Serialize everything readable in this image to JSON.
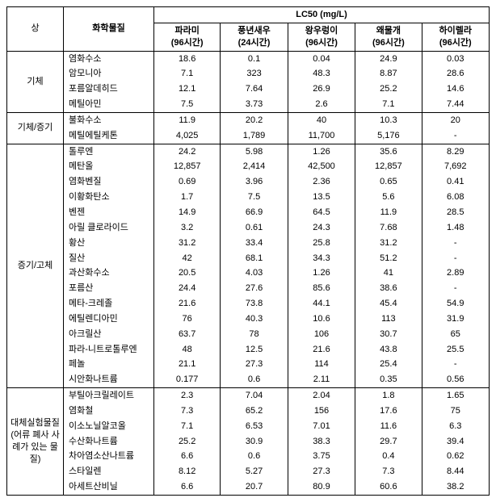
{
  "header": {
    "category_label": "상",
    "chemical_label": "화학물질",
    "lc50_label": "LC50  (mg/L)",
    "columns": [
      {
        "name": "파라미",
        "time": "(96시간)"
      },
      {
        "name": "풍년새우",
        "time": "(24시간)"
      },
      {
        "name": "왕우렁이",
        "time": "(96시간)"
      },
      {
        "name": "왜물개",
        "time": "(96시간)"
      },
      {
        "name": "하이렐라",
        "time": "(96시간)"
      }
    ]
  },
  "groups": [
    {
      "category": "기체",
      "rows": [
        {
          "chem": "염화수소",
          "v": [
            "18.6",
            "0.1",
            "0.04",
            "24.9",
            "0.03"
          ]
        },
        {
          "chem": "암모니아",
          "v": [
            "7.1",
            "323",
            "48.3",
            "8.87",
            "28.6"
          ]
        },
        {
          "chem": "포름알데히드",
          "v": [
            "12.1",
            "7.64",
            "26.9",
            "25.2",
            "14.6"
          ]
        },
        {
          "chem": "메틸아민",
          "v": [
            "7.5",
            "3.73",
            "2.6",
            "7.1",
            "7.44"
          ]
        }
      ]
    },
    {
      "category": "기체/증기",
      "rows": [
        {
          "chem": "불화수소",
          "v": [
            "11.9",
            "20.2",
            "40",
            "10.3",
            "20"
          ]
        },
        {
          "chem": "메틸에틸케톤",
          "v": [
            "4,025",
            "1,789",
            "11,700",
            "5,176",
            "-"
          ]
        }
      ]
    },
    {
      "category": "증기/고체",
      "rows": [
        {
          "chem": "톨루엔",
          "v": [
            "24.2",
            "5.98",
            "1.26",
            "35.6",
            "8.29"
          ]
        },
        {
          "chem": "메탄올",
          "v": [
            "12,857",
            "2,414",
            "42,500",
            "12,857",
            "7,692"
          ]
        },
        {
          "chem": "염화벤질",
          "v": [
            "0.69",
            "3.96",
            "2.36",
            "0.65",
            "0.41"
          ]
        },
        {
          "chem": "이황화탄소",
          "v": [
            "1.7",
            "7.5",
            "13.5",
            "5.6",
            "6.08"
          ]
        },
        {
          "chem": "벤젠",
          "v": [
            "14.9",
            "66.9",
            "64.5",
            "11.9",
            "28.5"
          ]
        },
        {
          "chem": "아릴 클로라이드",
          "v": [
            "3.2",
            "0.61",
            "24.3",
            "7.68",
            "1.48"
          ]
        },
        {
          "chem": "황산",
          "v": [
            "31.2",
            "33.4",
            "25.8",
            "31.2",
            "-"
          ]
        },
        {
          "chem": "질산",
          "v": [
            "42",
            "68.1",
            "34.3",
            "51.2",
            "-"
          ]
        },
        {
          "chem": "과산화수소",
          "v": [
            "20.5",
            "4.03",
            "1.26",
            "41",
            "2.89"
          ]
        },
        {
          "chem": "포름산",
          "v": [
            "24.4",
            "27.6",
            "85.6",
            "38.6",
            "-"
          ]
        },
        {
          "chem": "메타-크레졸",
          "v": [
            "21.6",
            "73.8",
            "44.1",
            "45.4",
            "54.9"
          ]
        },
        {
          "chem": "에틸렌디아민",
          "v": [
            "76",
            "40.3",
            "10.6",
            "113",
            "31.9"
          ]
        },
        {
          "chem": "아크릴산",
          "v": [
            "63.7",
            "78",
            "106",
            "30.7",
            "65"
          ]
        },
        {
          "chem": "파라-니트로톨루엔",
          "v": [
            "48",
            "12.5",
            "21.6",
            "43.8",
            "25.5"
          ]
        },
        {
          "chem": "페놀",
          "v": [
            "21.1",
            "27.3",
            "114",
            "25.4",
            "-"
          ]
        },
        {
          "chem": "시안화나트륨",
          "v": [
            "0.177",
            "0.6",
            "2.11",
            "0.35",
            "0.56"
          ]
        }
      ]
    },
    {
      "category": "대체실험물질 (어류 폐사 사례가 있는 물질)",
      "rows": [
        {
          "chem": "부틸아크릴레이트",
          "v": [
            "2.3",
            "7.04",
            "2.04",
            "1.8",
            "1.65"
          ]
        },
        {
          "chem": "염화철",
          "v": [
            "7.3",
            "65.2",
            "156",
            "17.6",
            "75"
          ]
        },
        {
          "chem": "이소노닐알코올",
          "v": [
            "7.1",
            "6.53",
            "7.01",
            "11.6",
            "6.3"
          ]
        },
        {
          "chem": "수산화나트륨",
          "v": [
            "25.2",
            "30.9",
            "38.3",
            "29.7",
            "39.4"
          ]
        },
        {
          "chem": "차아염소산나트륨",
          "v": [
            "6.6",
            "0.6",
            "3.75",
            "0.4",
            "0.62"
          ]
        },
        {
          "chem": "스타일렌",
          "v": [
            "8.12",
            "5.27",
            "27.3",
            "7.3",
            "8.44"
          ]
        },
        {
          "chem": "아세트산비닐",
          "v": [
            "6.6",
            "20.7",
            "80.9",
            "60.6",
            "38.2"
          ]
        }
      ]
    }
  ]
}
